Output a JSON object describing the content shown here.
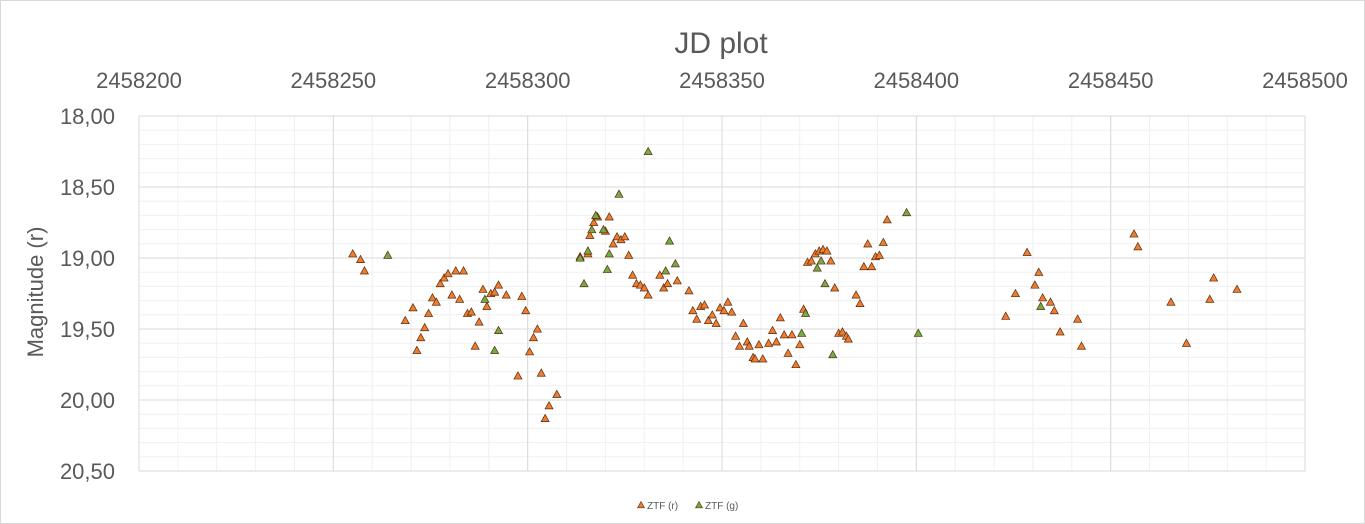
{
  "chart_data": {
    "type": "scatter",
    "title": "JD plot",
    "xlabel": "",
    "ylabel": "Magnitude (r)",
    "xlim": [
      2458200,
      2458500
    ],
    "ylim": [
      18.0,
      20.5
    ],
    "y_reversed": true,
    "x_axis_position": "top",
    "x_ticks": [
      2458200,
      2458250,
      2458300,
      2458350,
      2458400,
      2458450,
      2458500
    ],
    "x_tick_labels": [
      "2458200",
      "2458250",
      "2458300",
      "2458350",
      "2458400",
      "2458450",
      "2458500"
    ],
    "y_ticks": [
      18.0,
      18.5,
      19.0,
      19.5,
      20.0,
      20.5
    ],
    "y_tick_labels": [
      "18,00",
      "18,50",
      "19,00",
      "19,50",
      "20,00",
      "20,50"
    ],
    "grid": true,
    "legend_position": "bottom",
    "series": [
      {
        "name": "ZTF (r)",
        "color": "#ed7d31",
        "marker": "triangle",
        "points": [
          [
            2458255.0,
            18.97
          ],
          [
            2458257.0,
            19.01
          ],
          [
            2458258.0,
            19.09
          ],
          [
            2458268.5,
            19.44
          ],
          [
            2458270.5,
            19.35
          ],
          [
            2458271.5,
            19.65
          ],
          [
            2458272.5,
            19.56
          ],
          [
            2458273.5,
            19.49
          ],
          [
            2458274.5,
            19.39
          ],
          [
            2458275.5,
            19.28
          ],
          [
            2458276.5,
            19.31
          ],
          [
            2458277.5,
            19.18
          ],
          [
            2458278.5,
            19.14
          ],
          [
            2458279.5,
            19.11
          ],
          [
            2458280.5,
            19.26
          ],
          [
            2458281.5,
            19.09
          ],
          [
            2458282.5,
            19.29
          ],
          [
            2458283.5,
            19.09
          ],
          [
            2458284.5,
            19.39
          ],
          [
            2458285.5,
            19.38
          ],
          [
            2458286.5,
            19.62
          ],
          [
            2458287.5,
            19.45
          ],
          [
            2458288.5,
            19.22
          ],
          [
            2458289.5,
            19.34
          ],
          [
            2458290.5,
            19.25
          ],
          [
            2458291.5,
            19.24
          ],
          [
            2458292.5,
            19.19
          ],
          [
            2458294.5,
            19.26
          ],
          [
            2458297.5,
            19.83
          ],
          [
            2458298.5,
            19.27
          ],
          [
            2458299.5,
            19.37
          ],
          [
            2458300.5,
            19.66
          ],
          [
            2458301.5,
            19.56
          ],
          [
            2458302.5,
            19.5
          ],
          [
            2458303.5,
            19.81
          ],
          [
            2458304.5,
            20.13
          ],
          [
            2458305.5,
            20.04
          ],
          [
            2458307.5,
            19.96
          ],
          [
            2458313.5,
            18.99
          ],
          [
            2458315.5,
            18.97
          ],
          [
            2458316.0,
            18.84
          ],
          [
            2458317.0,
            18.75
          ],
          [
            2458318.0,
            18.71
          ],
          [
            2458320.0,
            18.81
          ],
          [
            2458321.0,
            18.71
          ],
          [
            2458322.0,
            18.9
          ],
          [
            2458323.0,
            18.85
          ],
          [
            2458324.0,
            18.87
          ],
          [
            2458325.0,
            18.85
          ],
          [
            2458326.0,
            18.98
          ],
          [
            2458327.0,
            19.12
          ],
          [
            2458328.0,
            19.18
          ],
          [
            2458329.0,
            19.19
          ],
          [
            2458330.0,
            19.21
          ],
          [
            2458331.0,
            19.26
          ],
          [
            2458334.0,
            19.12
          ],
          [
            2458335.0,
            19.21
          ],
          [
            2458336.0,
            19.18
          ],
          [
            2458338.5,
            19.16
          ],
          [
            2458341.5,
            19.23
          ],
          [
            2458342.5,
            19.37
          ],
          [
            2458343.5,
            19.43
          ],
          [
            2458344.5,
            19.34
          ],
          [
            2458345.5,
            19.33
          ],
          [
            2458346.5,
            19.44
          ],
          [
            2458347.5,
            19.4
          ],
          [
            2458348.5,
            19.46
          ],
          [
            2458349.5,
            19.35
          ],
          [
            2458350.5,
            19.37
          ],
          [
            2458351.5,
            19.31
          ],
          [
            2458352.5,
            19.38
          ],
          [
            2458353.5,
            19.55
          ],
          [
            2458354.5,
            19.62
          ],
          [
            2458355.5,
            19.46
          ],
          [
            2458356.5,
            19.59
          ],
          [
            2458357.0,
            19.62
          ],
          [
            2458358.0,
            19.7
          ],
          [
            2458358.5,
            19.71
          ],
          [
            2458359.5,
            19.61
          ],
          [
            2458360.5,
            19.71
          ],
          [
            2458362.0,
            19.6
          ],
          [
            2458363.0,
            19.51
          ],
          [
            2458364.0,
            19.59
          ],
          [
            2458365.0,
            19.42
          ],
          [
            2458366.0,
            19.54
          ],
          [
            2458367.0,
            19.67
          ],
          [
            2458368.0,
            19.54
          ],
          [
            2458369.0,
            19.75
          ],
          [
            2458370.0,
            19.61
          ],
          [
            2458371.0,
            19.36
          ],
          [
            2458372.0,
            19.03
          ],
          [
            2458373.0,
            19.02
          ],
          [
            2458374.0,
            18.97
          ],
          [
            2458375.0,
            18.95
          ],
          [
            2458376.0,
            18.94
          ],
          [
            2458377.0,
            18.95
          ],
          [
            2458378.0,
            19.02
          ],
          [
            2458379.0,
            19.21
          ],
          [
            2458380.0,
            19.53
          ],
          [
            2458381.0,
            19.52
          ],
          [
            2458382.0,
            19.55
          ],
          [
            2458382.5,
            19.57
          ],
          [
            2458384.5,
            19.26
          ],
          [
            2458385.5,
            19.32
          ],
          [
            2458386.5,
            19.06
          ],
          [
            2458387.5,
            18.9
          ],
          [
            2458388.5,
            19.06
          ],
          [
            2458389.5,
            18.99
          ],
          [
            2458390.5,
            18.98
          ],
          [
            2458391.5,
            18.89
          ],
          [
            2458392.5,
            18.73
          ],
          [
            2458423.0,
            19.41
          ],
          [
            2458425.5,
            19.25
          ],
          [
            2458428.5,
            18.96
          ],
          [
            2458430.5,
            19.19
          ],
          [
            2458431.5,
            19.1
          ],
          [
            2458432.5,
            19.28
          ],
          [
            2458434.5,
            19.31
          ],
          [
            2458435.5,
            19.37
          ],
          [
            2458437.0,
            19.52
          ],
          [
            2458441.5,
            19.43
          ],
          [
            2458442.5,
            19.62
          ],
          [
            2458456.0,
            18.83
          ],
          [
            2458457.0,
            18.92
          ],
          [
            2458465.5,
            19.31
          ],
          [
            2458469.5,
            19.6
          ],
          [
            2458475.5,
            19.29
          ],
          [
            2458476.5,
            19.14
          ],
          [
            2458482.5,
            19.22
          ]
        ]
      },
      {
        "name": "ZTF (g)",
        "color": "#70ad47",
        "marker": "triangle",
        "points": [
          [
            2458264.0,
            18.98
          ],
          [
            2458289.0,
            19.29
          ],
          [
            2458291.5,
            19.65
          ],
          [
            2458292.5,
            19.51
          ],
          [
            2458313.5,
            19.0
          ],
          [
            2458314.5,
            19.18
          ],
          [
            2458315.5,
            18.95
          ],
          [
            2458316.5,
            18.8
          ],
          [
            2458317.5,
            18.7
          ],
          [
            2458319.5,
            18.8
          ],
          [
            2458320.5,
            19.08
          ],
          [
            2458321.0,
            18.97
          ],
          [
            2458323.5,
            18.55
          ],
          [
            2458331.0,
            18.25
          ],
          [
            2458335.5,
            19.09
          ],
          [
            2458336.5,
            18.88
          ],
          [
            2458338.0,
            19.04
          ],
          [
            2458370.5,
            19.53
          ],
          [
            2458371.5,
            19.39
          ],
          [
            2458374.5,
            19.07
          ],
          [
            2458375.5,
            19.02
          ],
          [
            2458376.5,
            19.18
          ],
          [
            2458378.5,
            19.68
          ],
          [
            2458397.5,
            18.68
          ],
          [
            2458400.5,
            19.53
          ],
          [
            2458432.0,
            19.34
          ]
        ]
      }
    ]
  }
}
